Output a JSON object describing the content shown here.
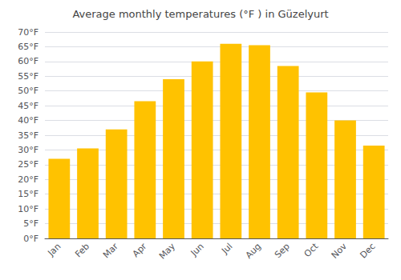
{
  "chart_data": {
    "type": "bar",
    "title": "Average monthly temperatures (°F ) in Güzelyurt",
    "categories": [
      "Jan",
      "Feb",
      "Mar",
      "Apr",
      "May",
      "Jun",
      "Jul",
      "Aug",
      "Sep",
      "Oct",
      "Nov",
      "Dec"
    ],
    "values": [
      27,
      30.5,
      37,
      46.5,
      54,
      60,
      66,
      65.5,
      58.5,
      49.5,
      40,
      31.5
    ],
    "color": "#FFC200",
    "ylim": [
      0,
      70
    ],
    "yticks": [
      {
        "value": 0,
        "label": "0°F"
      },
      {
        "value": 5,
        "label": "5°F"
      },
      {
        "value": 10,
        "label": "10°F"
      },
      {
        "value": 15,
        "label": "15°F"
      },
      {
        "value": 20,
        "label": "20°F"
      },
      {
        "value": 25,
        "label": "25°F"
      },
      {
        "value": 30,
        "label": "30°F"
      },
      {
        "value": 35,
        "label": "35°F"
      },
      {
        "value": 40,
        "label": "40°F"
      },
      {
        "value": 45,
        "label": "45°F"
      },
      {
        "value": 50,
        "label": "50°F"
      },
      {
        "value": 55,
        "label": "55°F"
      },
      {
        "value": 60,
        "label": "60°F"
      },
      {
        "value": 65,
        "label": "65°F"
      },
      {
        "value": 70,
        "label": "70°F"
      }
    ],
    "grid": true
  }
}
